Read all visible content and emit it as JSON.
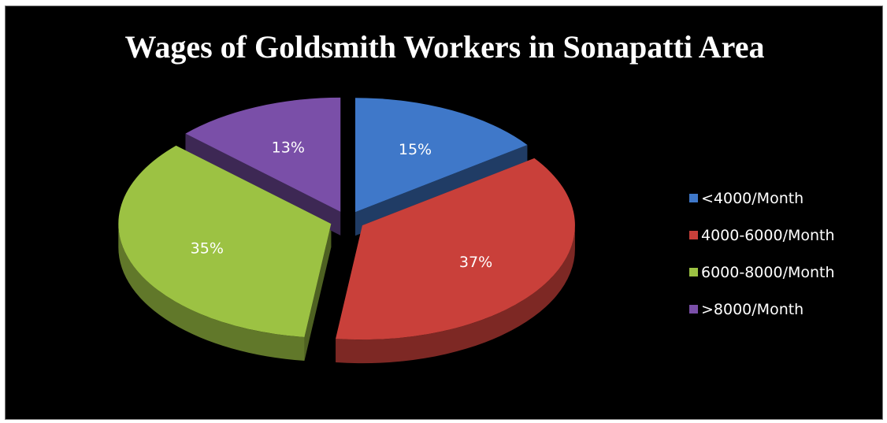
{
  "chart_data": {
    "type": "pie",
    "title": "Wages of Goldsmith Workers in Sonapatti Area",
    "slices": [
      {
        "label": "<4000/Month",
        "value": 15,
        "display": "15%",
        "color": "#3f78c9"
      },
      {
        "label": "4000-6000/Month",
        "value": 37,
        "display": "37%",
        "color": "#c9403a"
      },
      {
        "label": "6000-8000/Month",
        "value": 35,
        "display": "35%",
        "color": "#9cc243"
      },
      {
        "label": ">8000/Month",
        "value": 13,
        "display": "13%",
        "color": "#7a4fa8"
      }
    ],
    "exploded": true,
    "three_d": true,
    "legend_position": "right",
    "background": "#000000"
  }
}
